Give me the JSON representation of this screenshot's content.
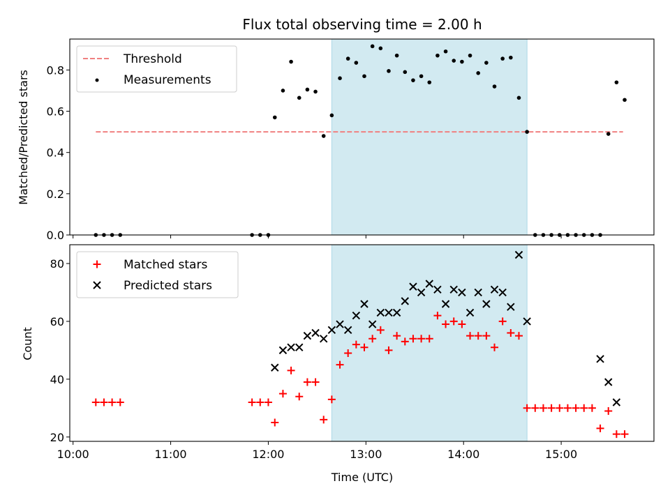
{
  "title": "Flux total observing time = 2.00 h",
  "colors": {
    "threshold": "#f08080",
    "measurements": "#000000",
    "matched": "#ff0000",
    "predicted": "#000000",
    "shade": "#add8e6"
  },
  "chart_data": [
    {
      "type": "scatter",
      "ylabel": "Matched/Predicted stars",
      "xlim": [
        "09:58",
        "15:57"
      ],
      "ylim": [
        0,
        0.95
      ],
      "yticks": [
        "0.0",
        "0.2",
        "0.4",
        "0.6",
        "0.8"
      ],
      "shaded_span": [
        "12:39",
        "14:39"
      ],
      "legend": {
        "placement": "top-left",
        "entries": [
          "Threshold",
          "Measurements"
        ]
      },
      "series": [
        {
          "name": "Threshold",
          "kind": "dashed-line",
          "x": [
            "10:14",
            "15:38"
          ],
          "y": [
            0.5,
            0.5
          ]
        },
        {
          "name": "Measurements",
          "kind": "dot",
          "x": [
            "10:14",
            "10:19",
            "10:24",
            "10:29",
            "11:50",
            "11:55",
            "12:00",
            "12:04",
            "12:09",
            "12:14",
            "12:19",
            "12:24",
            "12:29",
            "12:34",
            "12:39",
            "12:44",
            "12:49",
            "12:54",
            "12:59",
            "13:04",
            "13:09",
            "13:14",
            "13:19",
            "13:24",
            "13:29",
            "13:34",
            "13:39",
            "13:44",
            "13:49",
            "13:54",
            "13:59",
            "14:04",
            "14:09",
            "14:14",
            "14:19",
            "14:24",
            "14:29",
            "14:34",
            "14:39",
            "14:44",
            "14:49",
            "14:54",
            "14:59",
            "15:04",
            "15:09",
            "15:14",
            "15:19",
            "15:24",
            "15:29",
            "15:34",
            "15:39"
          ],
          "y": [
            0,
            0,
            0,
            0,
            0,
            0,
            0,
            0.57,
            0.7,
            0.84,
            0.665,
            0.705,
            0.695,
            0.48,
            0.58,
            0.76,
            0.855,
            0.835,
            0.77,
            0.915,
            0.905,
            0.795,
            0.87,
            0.79,
            0.75,
            0.77,
            0.74,
            0.87,
            0.89,
            0.845,
            0.84,
            0.87,
            0.785,
            0.835,
            0.72,
            0.855,
            0.86,
            0.665,
            0.5,
            0,
            0,
            0,
            0,
            0,
            0,
            0,
            0,
            0,
            0.49,
            0.74,
            0.655
          ]
        }
      ]
    },
    {
      "type": "scatter",
      "xlabel": "Time (UTC)",
      "ylabel": "Count",
      "xlim": [
        "09:58",
        "15:57"
      ],
      "ylim": [
        18.5,
        86.5
      ],
      "xticks": [
        "10:00",
        "11:00",
        "12:00",
        "13:00",
        "14:00",
        "15:00"
      ],
      "yticks": [
        "20",
        "40",
        "60",
        "80"
      ],
      "shaded_span": [
        "12:39",
        "14:39"
      ],
      "legend": {
        "placement": "top-left",
        "entries": [
          "Matched stars",
          "Predicted stars"
        ]
      },
      "series": [
        {
          "name": "Matched stars",
          "marker": "plus",
          "x": [
            "10:14",
            "10:19",
            "10:24",
            "10:29",
            "11:50",
            "11:55",
            "12:00",
            "12:04",
            "12:09",
            "12:14",
            "12:19",
            "12:24",
            "12:29",
            "12:34",
            "12:39",
            "12:44",
            "12:49",
            "12:54",
            "12:59",
            "13:04",
            "13:09",
            "13:14",
            "13:19",
            "13:24",
            "13:29",
            "13:34",
            "13:39",
            "13:44",
            "13:49",
            "13:54",
            "13:59",
            "14:04",
            "14:09",
            "14:14",
            "14:19",
            "14:24",
            "14:29",
            "14:34",
            "14:39",
            "14:44",
            "14:49",
            "14:54",
            "14:59",
            "15:04",
            "15:09",
            "15:14",
            "15:19",
            "15:24",
            "15:29",
            "15:34",
            "15:39"
          ],
          "y": [
            32,
            32,
            32,
            32,
            32,
            32,
            32,
            25,
            35,
            43,
            34,
            39,
            39,
            26,
            33,
            45,
            49,
            52,
            51,
            54,
            57,
            50,
            55,
            53,
            54,
            54,
            54,
            62,
            59,
            60,
            59,
            55,
            55,
            55,
            51,
            60,
            56,
            55,
            30,
            30,
            30,
            30,
            30,
            30,
            30,
            30,
            30,
            23,
            29,
            21,
            21
          ]
        },
        {
          "name": "Predicted stars",
          "marker": "x",
          "x": [
            "12:04",
            "12:09",
            "12:14",
            "12:19",
            "12:24",
            "12:29",
            "12:34",
            "12:39",
            "12:44",
            "12:49",
            "12:54",
            "12:59",
            "13:04",
            "13:09",
            "13:14",
            "13:19",
            "13:24",
            "13:29",
            "13:34",
            "13:39",
            "13:44",
            "13:49",
            "13:54",
            "13:59",
            "14:04",
            "14:09",
            "14:14",
            "14:19",
            "14:24",
            "14:29",
            "14:34",
            "14:39",
            "15:24",
            "15:29",
            "15:34"
          ],
          "y": [
            44,
            50,
            51,
            51,
            55,
            56,
            54,
            57,
            59,
            57,
            62,
            66,
            59,
            63,
            63,
            63,
            67,
            72,
            70,
            73,
            71,
            66,
            71,
            70,
            63,
            70,
            66,
            71,
            70,
            65,
            83,
            60,
            47,
            39,
            32
          ]
        }
      ]
    }
  ]
}
